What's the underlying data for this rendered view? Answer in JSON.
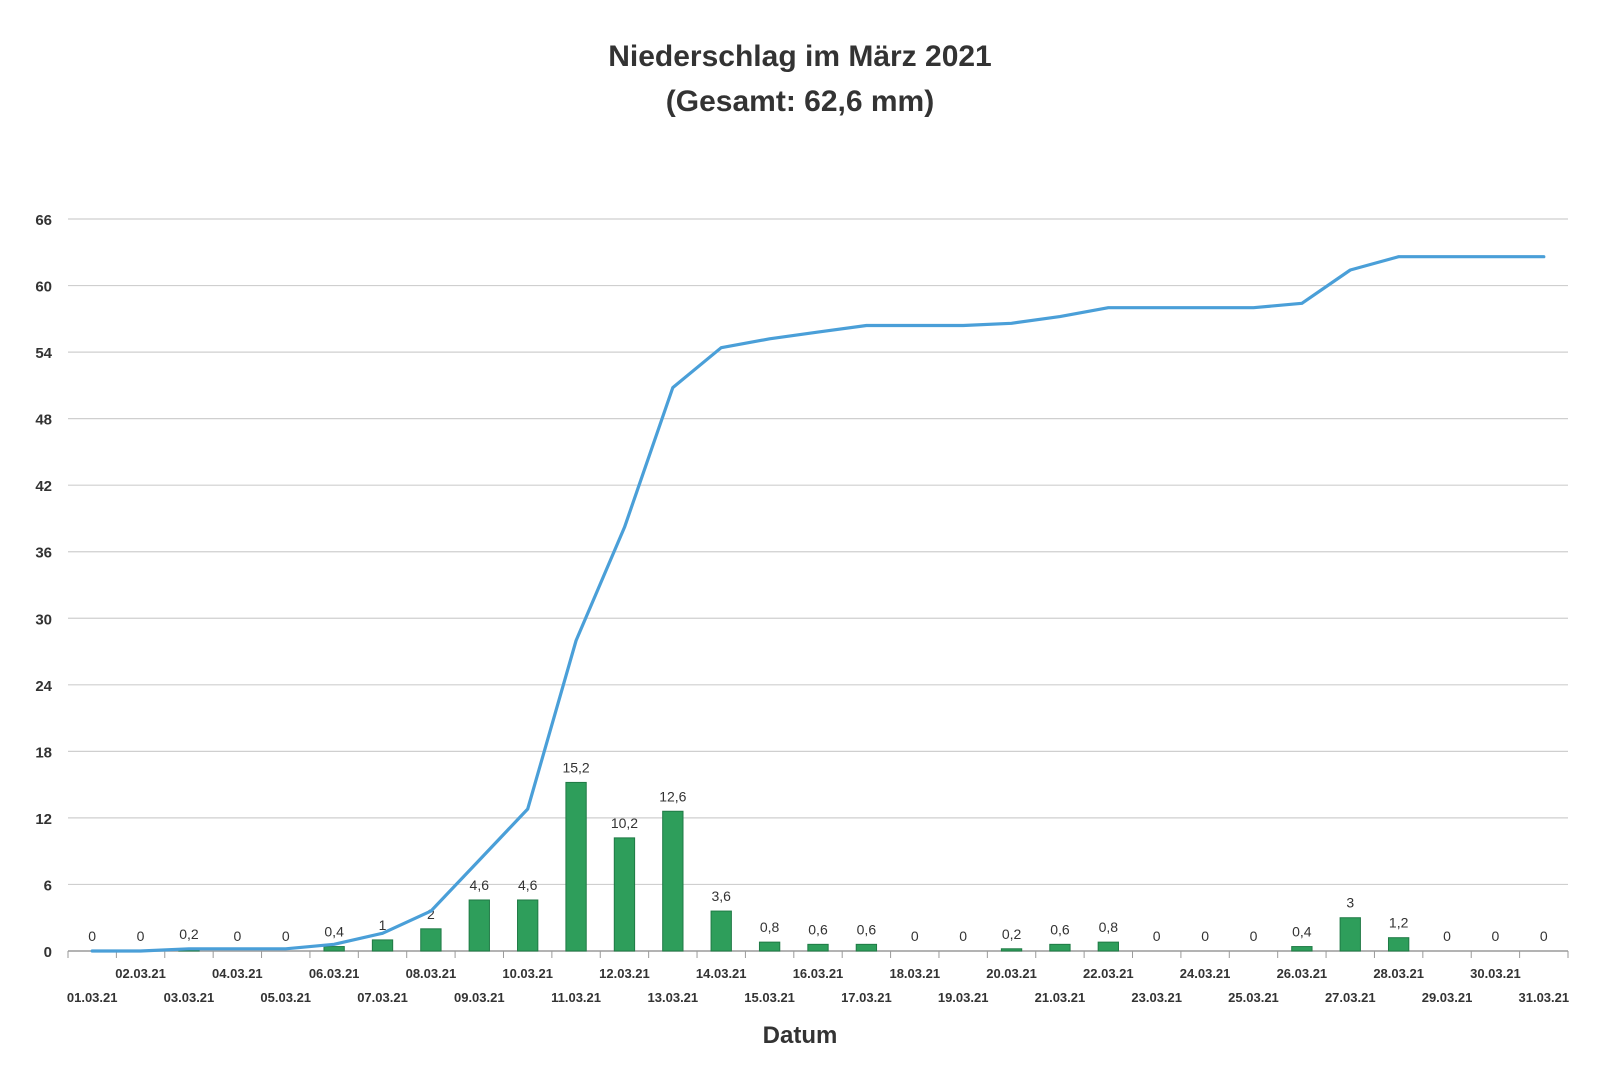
{
  "chart_data": {
    "type": "bar",
    "title": "Niederschlag im März 2021",
    "subtitle": "(Gesamt: 62,6 mm)",
    "xlabel": "Datum",
    "ylabel": "",
    "ylim": [
      0,
      66
    ],
    "yticks": [
      0,
      6,
      12,
      18,
      24,
      30,
      36,
      42,
      48,
      54,
      60,
      66
    ],
    "grid": true,
    "legend": "none",
    "categories": [
      "01.03.21",
      "02.03.21",
      "03.03.21",
      "04.03.21",
      "05.03.21",
      "06.03.21",
      "07.03.21",
      "08.03.21",
      "09.03.21",
      "10.03.21",
      "11.03.21",
      "12.03.21",
      "13.03.21",
      "14.03.21",
      "15.03.21",
      "16.03.21",
      "17.03.21",
      "18.03.21",
      "19.03.21",
      "20.03.21",
      "21.03.21",
      "22.03.21",
      "23.03.21",
      "24.03.21",
      "25.03.21",
      "26.03.21",
      "27.03.21",
      "28.03.21",
      "29.03.21",
      "30.03.21",
      "31.03.21"
    ],
    "series": [
      {
        "type": "bar",
        "color": "#2e9e5b",
        "values": [
          0,
          0,
          0.2,
          0,
          0,
          0.4,
          1,
          2,
          4.6,
          4.6,
          15.2,
          10.2,
          12.6,
          3.6,
          0.8,
          0.6,
          0.6,
          0,
          0,
          0.2,
          0.6,
          0.8,
          0,
          0,
          0,
          0.4,
          3,
          1.2,
          0,
          0,
          0
        ],
        "data_labels": [
          "0",
          "0",
          "0,2",
          "0",
          "0",
          "0,4",
          "1",
          "2",
          "4,6",
          "4,6",
          "15,2",
          "10,2",
          "12,6",
          "3,6",
          "0,8",
          "0,6",
          "0,6",
          "0",
          "0",
          "0,2",
          "0,6",
          "0,8",
          "0",
          "0",
          "0",
          "0,4",
          "3",
          "1,2",
          "0",
          "0",
          "0"
        ]
      },
      {
        "type": "line",
        "color": "#4a9fd8",
        "values": [
          0,
          0,
          0.2,
          0.2,
          0.2,
          0.6,
          1.6,
          3.6,
          8.2,
          12.8,
          28,
          38.2,
          50.8,
          54.4,
          55.2,
          55.8,
          56.4,
          56.4,
          56.4,
          56.6,
          57.2,
          58,
          58,
          58,
          58,
          58.4,
          61.4,
          62.6,
          62.6,
          62.6,
          62.6
        ]
      }
    ]
  }
}
